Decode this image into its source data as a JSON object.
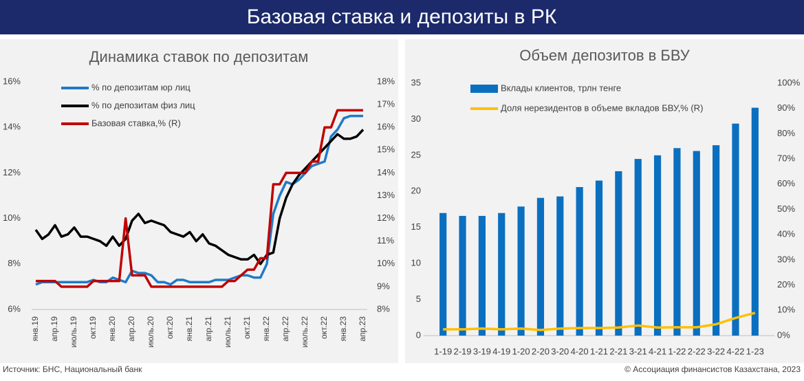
{
  "title": "Базовая ставка и депозиты в РК",
  "source": "Источник: БНС, Национальный банк",
  "copyright": "© Ассоциация финансистов Казахстана, 2023",
  "chart_data": [
    {
      "type": "line",
      "title": "Динамика ставок по депозитам",
      "categories": [
        "янв.19",
        null,
        null,
        "апр.19",
        null,
        null,
        "июль.19",
        null,
        null,
        "окт.19",
        null,
        null,
        "янв.20",
        null,
        null,
        "апр.20",
        null,
        null,
        "июль.20",
        null,
        null,
        "окт.20",
        null,
        null,
        "янв.21",
        null,
        null,
        "апр.21",
        null,
        null,
        "июль.21",
        null,
        null,
        "окт.21",
        null,
        null,
        "янв.22",
        null,
        null,
        "апр.22",
        null,
        null,
        "июль.22",
        null,
        null,
        "окт.22",
        null,
        null,
        "янв.23",
        null,
        null,
        "апр.23"
      ],
      "series": [
        {
          "name": "% по депозитам юр лиц",
          "color": "#1f7ac8",
          "values": [
            7.1,
            7.2,
            7.2,
            7.2,
            7.2,
            7.2,
            7.2,
            7.2,
            7.2,
            7.3,
            7.2,
            7.2,
            7.4,
            7.3,
            7.2,
            7.7,
            7.6,
            7.6,
            7.5,
            7.2,
            7.2,
            7.1,
            7.3,
            7.3,
            7.2,
            7.2,
            7.2,
            7.2,
            7.3,
            7.3,
            7.3,
            7.4,
            7.5,
            7.5,
            7.4,
            7.4,
            8.0,
            10.2,
            11.0,
            11.6,
            11.5,
            11.7,
            12.0,
            12.3,
            12.4,
            12.5,
            13.6,
            13.9,
            14.4,
            14.5,
            14.5,
            14.5
          ]
        },
        {
          "name": "% по депозитам физ лиц",
          "color": "#000000",
          "values": [
            9.5,
            9.1,
            9.3,
            9.7,
            9.2,
            9.3,
            9.6,
            9.2,
            9.2,
            9.1,
            9.0,
            8.8,
            9.2,
            8.8,
            9.1,
            9.9,
            10.2,
            9.8,
            9.9,
            9.8,
            9.7,
            9.4,
            9.3,
            9.2,
            9.4,
            9.0,
            9.3,
            8.9,
            8.8,
            8.6,
            8.4,
            8.3,
            8.2,
            8.2,
            8.4,
            8.0,
            8.4,
            8.5,
            10.0,
            10.9,
            11.5,
            11.9,
            12.2,
            12.5,
            12.8,
            13.1,
            13.4,
            13.7,
            13.5,
            13.5,
            13.6,
            13.9
          ]
        },
        {
          "name": "Базовая ставка,% (R)",
          "color": "#c00000",
          "axis": "y2",
          "values": [
            9.25,
            9.25,
            9.25,
            9.25,
            9.0,
            9.0,
            9.0,
            9.0,
            9.0,
            9.25,
            9.25,
            9.25,
            9.25,
            9.25,
            12.0,
            9.5,
            9.5,
            9.5,
            9.0,
            9.0,
            9.0,
            9.0,
            9.0,
            9.0,
            9.0,
            9.0,
            9.0,
            9.0,
            9.0,
            9.0,
            9.25,
            9.25,
            9.5,
            9.75,
            9.75,
            10.25,
            10.25,
            13.5,
            13.5,
            14.0,
            14.0,
            14.0,
            14.0,
            14.5,
            14.5,
            16.0,
            16.0,
            16.75,
            16.75,
            16.75,
            16.75,
            16.75
          ]
        }
      ],
      "ylim": [
        6,
        16
      ],
      "yticks": [
        {
          "value": 6,
          "label": "6%"
        },
        {
          "value": 8,
          "label": "8%"
        },
        {
          "value": 10,
          "label": "10%"
        },
        {
          "value": 12,
          "label": "12%"
        },
        {
          "value": 14,
          "label": "14%"
        },
        {
          "value": 16,
          "label": "16%"
        }
      ],
      "y2lim": [
        8,
        18
      ],
      "y2ticks": [
        {
          "value": 8,
          "label": "8%"
        },
        {
          "value": 9,
          "label": "9%"
        },
        {
          "value": 10,
          "label": "10%"
        },
        {
          "value": 11,
          "label": "11%"
        },
        {
          "value": 12,
          "label": "12%"
        },
        {
          "value": 13,
          "label": "13%"
        },
        {
          "value": 14,
          "label": "14%"
        },
        {
          "value": 15,
          "label": "15%"
        },
        {
          "value": 16,
          "label": "16%"
        },
        {
          "value": 17,
          "label": "17%"
        },
        {
          "value": 18,
          "label": "18%"
        }
      ],
      "legend": "top-left"
    },
    {
      "type": "bar",
      "title": "Объем депозитов в БВУ",
      "categories": [
        "1-19",
        "2-19",
        "3-19",
        "4-19",
        "1-20",
        "2-20",
        "3-20",
        "4-20",
        "1-21",
        "2-21",
        "3-21",
        "4-21",
        "1-22",
        "2-22",
        "3-22",
        "4-22",
        "1-23"
      ],
      "series": [
        {
          "name": "Вклады клиентов, трлн тенге",
          "color": "#0b6fc0",
          "type": "bar",
          "values": [
            17.0,
            16.6,
            16.6,
            17.0,
            17.9,
            19.1,
            19.3,
            20.6,
            21.5,
            22.8,
            24.5,
            25.0,
            26.0,
            25.6,
            26.4,
            29.4,
            31.6
          ]
        },
        {
          "name": "Доля нерезидентов в объеме вкладов БВУ,% (R)",
          "color": "#ffc000",
          "type": "line",
          "axis": "y2",
          "values": [
            2.5,
            2.5,
            2.8,
            2.5,
            2.8,
            2.2,
            2.8,
            3.0,
            3.0,
            3.2,
            4.0,
            3.2,
            3.3,
            3.3,
            4.5,
            7.0,
            9.0
          ]
        }
      ],
      "ylim": [
        0,
        35
      ],
      "yticks": [
        0,
        5,
        10,
        15,
        20,
        25,
        30,
        35
      ],
      "y2lim": [
        0,
        100
      ],
      "y2ticks": [
        {
          "value": 0,
          "label": "0%"
        },
        {
          "value": 10,
          "label": "10%"
        },
        {
          "value": 20,
          "label": "20%"
        },
        {
          "value": 30,
          "label": "30%"
        },
        {
          "value": 40,
          "label": "40%"
        },
        {
          "value": 50,
          "label": "50%"
        },
        {
          "value": 60,
          "label": "60%"
        },
        {
          "value": 70,
          "label": "70%"
        },
        {
          "value": 80,
          "label": "80%"
        },
        {
          "value": 90,
          "label": "90%"
        },
        {
          "value": 100,
          "label": "100%"
        }
      ],
      "legend": "top-left"
    }
  ]
}
